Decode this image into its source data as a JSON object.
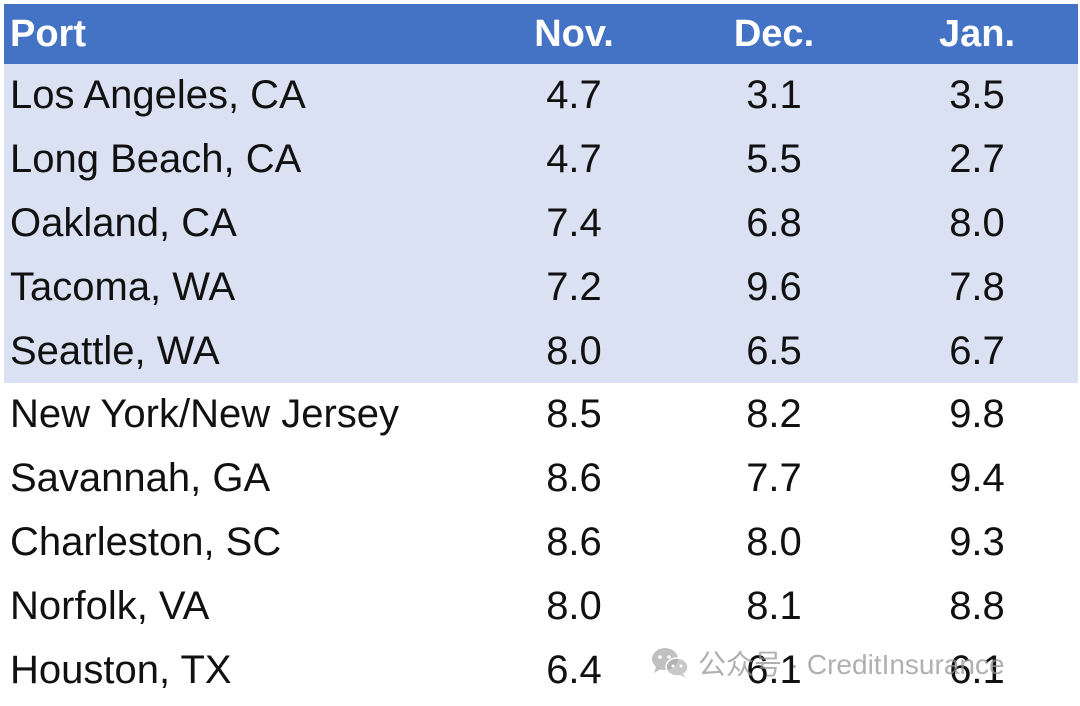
{
  "chart_data": {
    "type": "table",
    "columns": [
      "Port",
      "Nov.",
      "Dec.",
      "Jan."
    ],
    "shaded_rows": 5,
    "header_color": "#4472c4",
    "shade_color": "#dae1f3",
    "rows": [
      [
        "Los Angeles, CA",
        "4.7",
        "3.1",
        "3.5"
      ],
      [
        "Long Beach, CA",
        "4.7",
        "5.5",
        "2.7"
      ],
      [
        "Oakland, CA",
        "7.4",
        "6.8",
        "8.0"
      ],
      [
        "Tacoma, WA",
        "7.2",
        "9.6",
        "7.8"
      ],
      [
        "Seattle, WA",
        "8.0",
        "6.5",
        "6.7"
      ],
      [
        "New York/New Jersey",
        "8.5",
        "8.2",
        "9.8"
      ],
      [
        "Savannah, GA",
        "8.6",
        "7.7",
        "9.4"
      ],
      [
        "Charleston, SC",
        "8.6",
        "8.0",
        "9.3"
      ],
      [
        "Norfolk, VA",
        "8.0",
        "8.1",
        "8.8"
      ],
      [
        "Houston, TX",
        "6.4",
        "6.1",
        "6.1"
      ]
    ]
  },
  "watermark": {
    "text": "公众号 · CreditInsurance",
    "icon": "wechat-icon"
  }
}
